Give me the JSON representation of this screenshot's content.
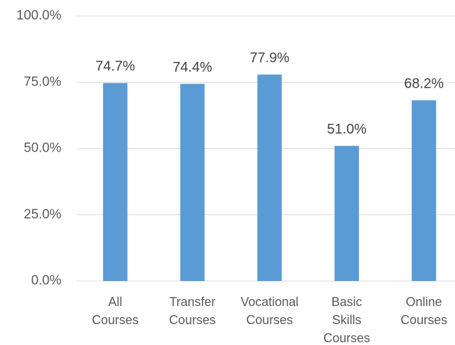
{
  "chart_data": {
    "type": "bar",
    "categories": [
      "All Courses",
      "Transfer Courses",
      "Vocational Courses",
      "Basic Skills Courses",
      "Online Courses"
    ],
    "values": [
      74.7,
      74.4,
      77.9,
      51.0,
      68.2
    ],
    "value_labels": [
      "74.7%",
      "74.4%",
      "77.9%",
      "51.0%",
      "68.2%"
    ],
    "color": "#5b9bd5",
    "ylim": [
      0,
      100
    ],
    "yticks": [
      {
        "value": 0,
        "label": "0.0%"
      },
      {
        "value": 25,
        "label": "25.0%"
      },
      {
        "value": 50,
        "label": "50.0%"
      },
      {
        "value": 75,
        "label": "75.0%"
      },
      {
        "value": 100,
        "label": "100.0%"
      }
    ],
    "grid": true
  }
}
